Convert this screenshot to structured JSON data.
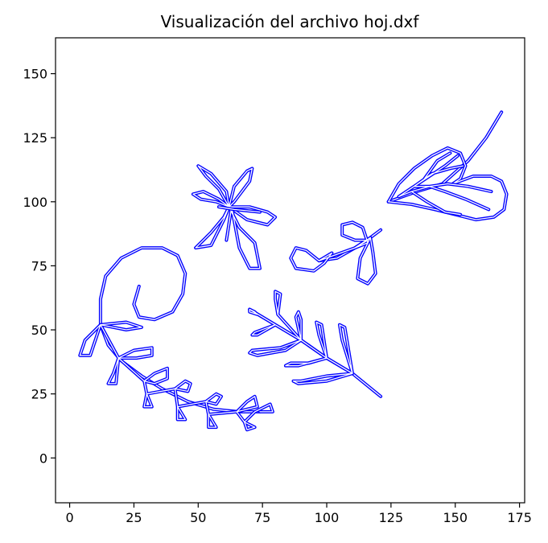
{
  "chart_data": {
    "type": "line",
    "title": "Visualización del archivo hoj.dxf",
    "xlabel": "",
    "ylabel": "",
    "xlim": [
      -5.5,
      177
    ],
    "ylim": [
      -17.5,
      164
    ],
    "xticks": [
      0,
      25,
      50,
      75,
      100,
      125,
      150,
      175
    ],
    "yticks": [
      0,
      25,
      50,
      75,
      100,
      125,
      150
    ],
    "grid": false,
    "line_color": "#0000ff",
    "series": [
      {
        "id": "spiral-vine",
        "points": [
          [
            27,
            67
          ],
          [
            25,
            60
          ],
          [
            27,
            55
          ],
          [
            33,
            54
          ],
          [
            40,
            57
          ],
          [
            44,
            64
          ],
          [
            45,
            72
          ],
          [
            42,
            79
          ],
          [
            36,
            82
          ],
          [
            28,
            82
          ],
          [
            20,
            78
          ],
          [
            14,
            71
          ],
          [
            12,
            62
          ],
          [
            12,
            52
          ],
          [
            15,
            44
          ],
          [
            20,
            38
          ],
          [
            28,
            32
          ],
          [
            36,
            27
          ],
          [
            46,
            22
          ],
          [
            56,
            19
          ],
          [
            66,
            18
          ],
          [
            74,
            18
          ]
        ]
      },
      {
        "id": "vine-leaves",
        "points": [
          [
            12,
            52
          ],
          [
            22,
            53
          ],
          [
            28,
            51
          ],
          [
            22,
            50
          ],
          [
            12,
            52
          ],
          [
            6,
            46
          ],
          [
            4,
            40
          ],
          [
            8,
            40
          ],
          [
            12,
            52
          ],
          [
            19,
            39
          ],
          [
            25,
            42
          ],
          [
            32,
            43
          ],
          [
            32,
            40
          ],
          [
            26,
            39
          ],
          [
            19,
            39
          ],
          [
            17,
            33
          ],
          [
            15,
            29
          ],
          [
            18,
            29
          ],
          [
            19,
            39
          ],
          [
            29,
            30
          ],
          [
            33,
            33
          ],
          [
            38,
            35
          ],
          [
            38,
            31
          ],
          [
            33,
            29
          ],
          [
            29,
            30
          ],
          [
            30,
            25
          ],
          [
            29,
            20
          ],
          [
            32,
            20
          ],
          [
            30,
            25
          ],
          [
            41,
            27
          ],
          [
            45,
            30
          ],
          [
            47,
            29
          ],
          [
            46,
            26
          ],
          [
            41,
            27
          ],
          [
            42,
            20
          ],
          [
            42,
            15
          ],
          [
            45,
            15
          ],
          [
            42,
            20
          ],
          [
            53,
            22
          ],
          [
            57,
            25
          ],
          [
            59,
            24
          ],
          [
            57,
            21
          ],
          [
            53,
            22
          ],
          [
            54,
            17
          ],
          [
            54,
            12
          ],
          [
            57,
            12
          ],
          [
            54,
            17
          ],
          [
            65,
            18
          ],
          [
            69,
            22
          ],
          [
            72,
            24
          ],
          [
            73,
            20
          ],
          [
            65,
            18
          ],
          [
            68,
            14
          ],
          [
            69,
            11
          ],
          [
            72,
            12
          ],
          [
            68,
            14
          ],
          [
            72,
            18
          ],
          [
            78,
            21
          ],
          [
            79,
            18
          ],
          [
            74,
            18
          ]
        ]
      },
      {
        "id": "flower",
        "points": [
          [
            62,
            98
          ],
          [
            57,
            100
          ],
          [
            51,
            101
          ],
          [
            48,
            103
          ],
          [
            52,
            104
          ],
          [
            58,
            101
          ],
          [
            62,
            98
          ],
          [
            60,
            94
          ],
          [
            55,
            88
          ],
          [
            49,
            82
          ],
          [
            55,
            83
          ],
          [
            60,
            93
          ],
          [
            62,
            98
          ],
          [
            58,
            105
          ],
          [
            53,
            110
          ],
          [
            50,
            114
          ],
          [
            55,
            111
          ],
          [
            61,
            104
          ],
          [
            62,
            98
          ],
          [
            64,
            106
          ],
          [
            69,
            112
          ],
          [
            71,
            113
          ],
          [
            70,
            108
          ],
          [
            64,
            100
          ],
          [
            62,
            98
          ],
          [
            70,
            98
          ],
          [
            77,
            96
          ],
          [
            80,
            94
          ],
          [
            77,
            91
          ],
          [
            69,
            93
          ],
          [
            62,
            98
          ],
          [
            66,
            90
          ],
          [
            72,
            84
          ],
          [
            74,
            74
          ],
          [
            70,
            74
          ],
          [
            66,
            82
          ],
          [
            63,
            98
          ],
          [
            61,
            85
          ]
        ]
      },
      {
        "id": "flower-petal-lines",
        "points": [
          [
            58,
            98
          ],
          [
            64,
            97
          ],
          [
            74,
            96
          ]
        ]
      },
      {
        "id": "branch-stem",
        "points": [
          [
            70,
            58
          ],
          [
            80,
            52
          ],
          [
            90,
            46
          ],
          [
            100,
            39
          ],
          [
            110,
            33
          ],
          [
            121,
            24
          ]
        ]
      },
      {
        "id": "branch-leaves",
        "points": [
          [
            70,
            58
          ],
          [
            72,
            57
          ],
          [
            73,
            56
          ],
          [
            70,
            57
          ],
          [
            70,
            58
          ],
          [
            80,
            52
          ],
          [
            72,
            49
          ],
          [
            71,
            48
          ],
          [
            73,
            48
          ],
          [
            80,
            52
          ],
          [
            90,
            46
          ],
          [
            82,
            43
          ],
          [
            71,
            42
          ],
          [
            70,
            41
          ],
          [
            73,
            40
          ],
          [
            84,
            42
          ],
          [
            90,
            46
          ],
          [
            81,
            56
          ],
          [
            80,
            62
          ],
          [
            80,
            65
          ],
          [
            82,
            64
          ],
          [
            81,
            56
          ],
          [
            90,
            46
          ],
          [
            90,
            54
          ],
          [
            89,
            57
          ],
          [
            88,
            55
          ],
          [
            90,
            46
          ],
          [
            100,
            39
          ],
          [
            89,
            36
          ],
          [
            84,
            36
          ],
          [
            86,
            37
          ],
          [
            93,
            37
          ],
          [
            100,
            39
          ],
          [
            97,
            48
          ],
          [
            96,
            53
          ],
          [
            98,
            52
          ],
          [
            100,
            39
          ],
          [
            110,
            33
          ],
          [
            106,
            46
          ],
          [
            105,
            52
          ],
          [
            107,
            51
          ],
          [
            110,
            33
          ],
          [
            100,
            32
          ],
          [
            90,
            30
          ],
          [
            87,
            30
          ],
          [
            89,
            29
          ],
          [
            100,
            30
          ],
          [
            110,
            33
          ]
        ]
      },
      {
        "id": "small-branch",
        "points": [
          [
            97,
            77
          ],
          [
            104,
            78
          ],
          [
            111,
            82
          ],
          [
            117,
            86
          ],
          [
            121,
            89
          ]
        ]
      },
      {
        "id": "small-branch-leaves",
        "points": [
          [
            97,
            77
          ],
          [
            92,
            81
          ],
          [
            88,
            82
          ],
          [
            86,
            78
          ],
          [
            88,
            74
          ],
          [
            95,
            73
          ],
          [
            99,
            76
          ],
          [
            102,
            80
          ],
          [
            97,
            77
          ],
          [
            111,
            82
          ],
          [
            116,
            84
          ],
          [
            114,
            90
          ],
          [
            110,
            92
          ],
          [
            106,
            91
          ],
          [
            106,
            87
          ],
          [
            111,
            85
          ],
          [
            116,
            85
          ],
          [
            111,
            82
          ],
          [
            117,
            86
          ],
          [
            118,
            80
          ],
          [
            119,
            72
          ],
          [
            116,
            68
          ],
          [
            112,
            70
          ],
          [
            113,
            78
          ],
          [
            117,
            86
          ]
        ]
      },
      {
        "id": "heart-leaf-stem",
        "points": [
          [
            124,
            100
          ],
          [
            135,
            104
          ],
          [
            145,
            107
          ],
          [
            155,
            116
          ],
          [
            162,
            125
          ],
          [
            168,
            135
          ]
        ]
      },
      {
        "id": "heart-leaf-outline",
        "points": [
          [
            124,
            100
          ],
          [
            128,
            107
          ],
          [
            134,
            113
          ],
          [
            141,
            118
          ],
          [
            147,
            121
          ],
          [
            152,
            119
          ],
          [
            154,
            114
          ],
          [
            152,
            109
          ],
          [
            149,
            107
          ],
          [
            157,
            110
          ],
          [
            164,
            110
          ],
          [
            168,
            108
          ],
          [
            170,
            103
          ],
          [
            169,
            97
          ],
          [
            165,
            94
          ],
          [
            158,
            93
          ],
          [
            150,
            95
          ],
          [
            142,
            97
          ],
          [
            133,
            99
          ],
          [
            124,
            100
          ]
        ]
      },
      {
        "id": "heart-leaf-veins",
        "points": [
          [
            128,
            102
          ],
          [
            134,
            106
          ],
          [
            140,
            110
          ],
          [
            146,
            114
          ],
          [
            151,
            118
          ],
          [
            146,
            114
          ],
          [
            140,
            110
          ],
          [
            134,
            106
          ],
          [
            128,
            102
          ],
          [
            133,
            104
          ],
          [
            139,
            100
          ],
          [
            146,
            96
          ],
          [
            152,
            95
          ],
          [
            146,
            96
          ],
          [
            139,
            100
          ],
          [
            133,
            104
          ],
          [
            140,
            106
          ],
          [
            146,
            104
          ],
          [
            154,
            101
          ],
          [
            163,
            97
          ],
          [
            154,
            101
          ],
          [
            146,
            104
          ],
          [
            140,
            106
          ],
          [
            147,
            107
          ],
          [
            155,
            106
          ],
          [
            164,
            104
          ],
          [
            155,
            106
          ],
          [
            147,
            107
          ],
          [
            140,
            106
          ],
          [
            134,
            106
          ],
          [
            141,
            111
          ],
          [
            148,
            113
          ],
          [
            153,
            114
          ],
          [
            148,
            113
          ],
          [
            141,
            111
          ],
          [
            138,
            109
          ],
          [
            143,
            116
          ],
          [
            148,
            119
          ]
        ]
      }
    ]
  }
}
